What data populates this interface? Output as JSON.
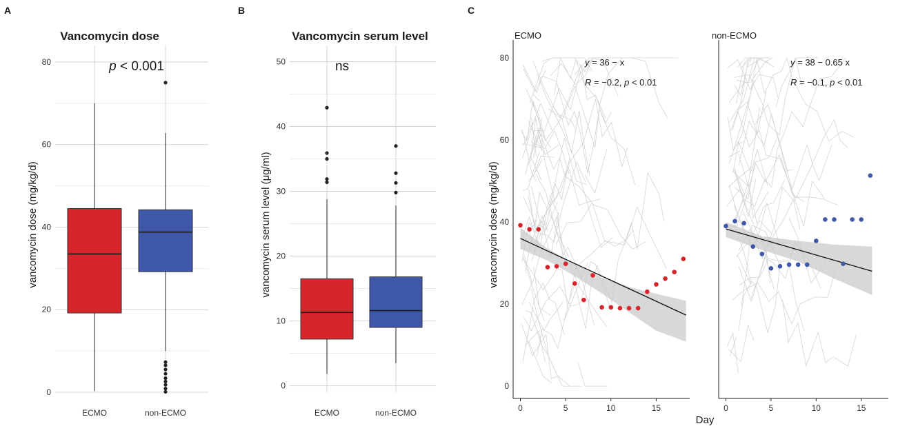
{
  "panel_labels": [
    "A",
    "B",
    "C"
  ],
  "chart_data": [
    {
      "type": "box",
      "panel": "A",
      "title": "Vancomycin dose",
      "xlabel": "",
      "ylabel": "vancomycin dose (mg/kg/d)",
      "annotation": "p < 0.001",
      "ylim": [
        0,
        84
      ],
      "yticks": [
        0,
        20,
        40,
        60,
        80
      ],
      "grid": true,
      "categories": [
        "ECMO",
        "non-ECMO"
      ],
      "colors": [
        "#d7262b",
        "#3f57a8"
      ],
      "boxes": [
        {
          "name": "ECMO",
          "whisker_low": 0.3,
          "q1": 19.2,
          "median": 33.5,
          "q3": 44.5,
          "whisker_high": 70,
          "outliers": []
        },
        {
          "name": "non-ECMO",
          "whisker_low": 10,
          "q1": 29.2,
          "median": 38.8,
          "q3": 44.2,
          "whisker_high": 62.8,
          "outliers": [
            75,
            7.3,
            6.5,
            5.5,
            4.5,
            3.4,
            2.6,
            1.8,
            0.9,
            0.1
          ]
        }
      ]
    },
    {
      "type": "box",
      "panel": "B",
      "title": "Vancomycin serum level",
      "xlabel": "",
      "ylabel": "vancomycin serum level (μg/ml)",
      "annotation": "ns",
      "ylim": [
        -1,
        52.5
      ],
      "yticks": [
        0,
        10,
        20,
        30,
        40,
        50
      ],
      "grid": true,
      "categories": [
        "ECMO",
        "non-ECMO"
      ],
      "colors": [
        "#d7262b",
        "#3f57a8"
      ],
      "boxes": [
        {
          "name": "ECMO",
          "whisker_low": 1.8,
          "q1": 7.2,
          "median": 11.3,
          "q3": 16.5,
          "whisker_high": 28.8,
          "outliers": [
            42.9,
            35.9,
            35,
            31.9,
            31.4
          ]
        },
        {
          "name": "non-ECMO",
          "whisker_low": 3.5,
          "q1": 9,
          "median": 11.6,
          "q3": 16.8,
          "whisker_high": 27.8,
          "outliers": [
            37,
            32.8,
            31.3,
            29.8
          ]
        }
      ]
    },
    {
      "type": "scatter",
      "panel": "C",
      "xlabel": "Day",
      "ylabel": "vancomycin dose (mg/kg/d)",
      "ylim": [
        -3,
        83
      ],
      "yticks": [
        0,
        20,
        40,
        60,
        80
      ],
      "facets": [
        {
          "name": "ECMO",
          "eq_y": "y",
          "eq_rest": " = 36 − x",
          "eq_r": "R",
          "eq_r_rest": " = −0.2, ",
          "eq_p": "p",
          "eq_p_rest": " < 0.01",
          "color": "#d7262b",
          "xlim": [
            -0.8,
            18.7
          ],
          "xticks": [
            0,
            5,
            10,
            15
          ],
          "fit": {
            "x0": 0,
            "y0": 36,
            "x1": 18.3,
            "y1": 17.3
          },
          "band": [
            [
              0,
              38.6,
              33.4
            ],
            [
              3,
              33.5,
              30.6
            ],
            [
              6,
              29.8,
              26.8
            ],
            [
              9,
              26.4,
              22.6
            ],
            [
              12,
              24.2,
              18
            ],
            [
              15,
              22.5,
              13.5
            ],
            [
              18.3,
              20.8,
              10.8
            ]
          ],
          "points": [
            [
              0,
              39.2
            ],
            [
              1,
              38.2
            ],
            [
              2,
              38.2
            ],
            [
              3,
              29
            ],
            [
              4,
              29.2
            ],
            [
              5,
              29.8
            ],
            [
              6,
              25
            ],
            [
              7,
              21
            ],
            [
              8,
              27
            ],
            [
              9,
              19.2
            ],
            [
              10,
              19.2
            ],
            [
              11,
              19
            ],
            [
              12,
              19
            ],
            [
              13,
              19
            ],
            [
              14,
              23
            ],
            [
              15,
              24.8
            ],
            [
              16,
              26.2
            ],
            [
              17,
              27.8
            ],
            [
              18,
              31
            ]
          ]
        },
        {
          "name": "non-ECMO",
          "eq_y": "y",
          "eq_rest": " = 38 − 0.65 x",
          "eq_r": "R",
          "eq_r_rest": " = −0.1, ",
          "eq_p": "p",
          "eq_p_rest": " < 0.01",
          "color": "#3f57a8",
          "xlim": [
            -0.8,
            18
          ],
          "xticks": [
            0,
            5,
            10,
            15
          ],
          "fit": {
            "x0": 0,
            "y0": 38.3,
            "x1": 16.2,
            "y1": 28
          },
          "band": [
            [
              0,
              40,
              36.3
            ],
            [
              4,
              36.5,
              33.2
            ],
            [
              8,
              35.4,
              30.4
            ],
            [
              12,
              34.5,
              26.2
            ],
            [
              16.2,
              34,
              22.2
            ]
          ],
          "points": [
            [
              0,
              39
            ],
            [
              1,
              40.2
            ],
            [
              2,
              39.7
            ],
            [
              3,
              34
            ],
            [
              4,
              32.2
            ],
            [
              5,
              28.7
            ],
            [
              6,
              29.2
            ],
            [
              7,
              29.6
            ],
            [
              8,
              29.6
            ],
            [
              9,
              29.6
            ],
            [
              10,
              35.4
            ],
            [
              11,
              40.6
            ],
            [
              12,
              40.6
            ],
            [
              13,
              29.8
            ],
            [
              14,
              40.6
            ],
            [
              15,
              40.6
            ],
            [
              16,
              51.3
            ]
          ]
        }
      ]
    }
  ]
}
